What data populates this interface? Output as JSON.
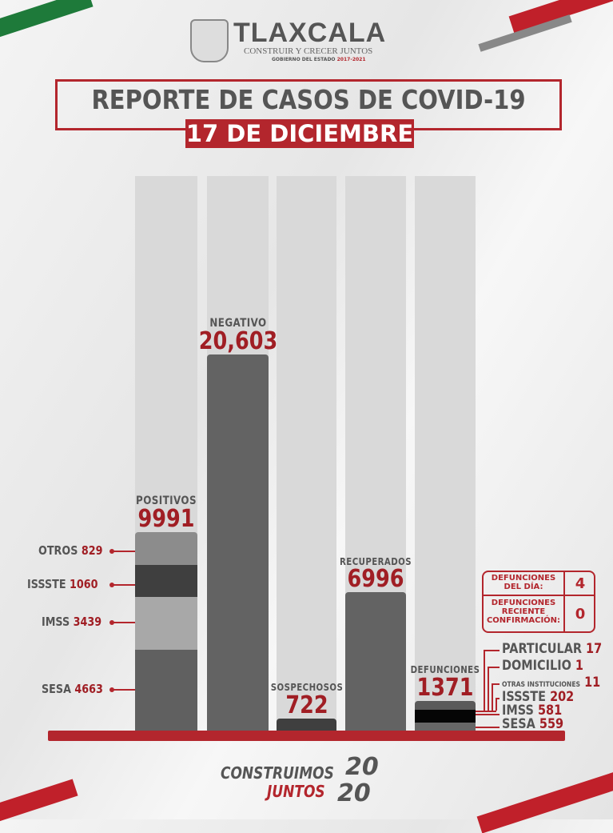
{
  "header": {
    "logo_text": "TLAXCALA",
    "slogan": "CONSTRUIR Y CRECER JUNTOS",
    "government": "GOBIERNO DEL ESTADO",
    "period": "2017-2021",
    "title": "REPORTE DE CASOS DE COVID-19",
    "date": "17 DE DICIEMBRE"
  },
  "colors": {
    "accent": "#b3262d",
    "bar_dark": "#636363",
    "column_bg": "#d9d9d9",
    "green": "#1e7a3a"
  },
  "chart_data": {
    "type": "bar",
    "categories": [
      "POSITIVOS",
      "NEGATIVO",
      "SOSPECHOSOS",
      "RECUPERADOS",
      "DEFUNCIONES"
    ],
    "values": [
      "9991",
      "20,603",
      "722",
      "6996",
      "1371"
    ],
    "positivos_breakdown": [
      {
        "name": "OTROS",
        "value": "829"
      },
      {
        "name": "ISSSTE",
        "value": "1060"
      },
      {
        "name": "IMSS",
        "value": "3439"
      },
      {
        "name": "SESA",
        "value": "4663"
      }
    ],
    "defunciones_breakdown": [
      {
        "name": "PARTICULAR",
        "value": "17"
      },
      {
        "name": "DOMICILIO",
        "value": "1"
      },
      {
        "name": "OTRAS INSTITUCIONES",
        "value": "11"
      },
      {
        "name": "ISSSTE",
        "value": "202"
      },
      {
        "name": "IMSS",
        "value": "581"
      },
      {
        "name": "SESA",
        "value": "559"
      }
    ]
  },
  "deaths_box": {
    "day_label_1": "DEFUNCIONES",
    "day_label_2": "DEL DÍA:",
    "day_value": "4",
    "recent_label_1": "DEFUNCIONES",
    "recent_label_2": "RECIENTE",
    "recent_label_3": "CONFIRMACIÓN:",
    "recent_value": "0"
  },
  "footer": {
    "line1": "CONSTRUIMOS",
    "line2": "JUNTOS",
    "year_top": "20",
    "year_bottom": "20"
  }
}
